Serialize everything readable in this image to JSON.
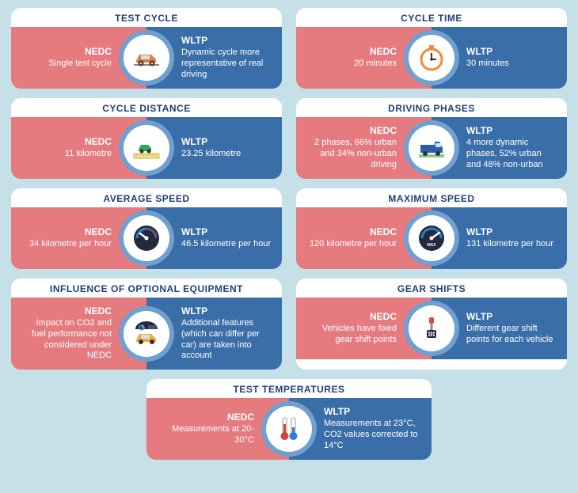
{
  "colors": {
    "background": "#c5e0e6",
    "nedc_bg": "#e57b7f",
    "wltp_bg": "#3a6ea8",
    "title_color": "#1f3f77",
    "icon_ring": "#6fa0cf",
    "icon_inner_bg": "#ffffff",
    "car_orange": "#e77b3a",
    "car_green": "#2aa85a",
    "car_blue": "#2b5ea8",
    "car_yellow": "#f2a93b",
    "gauge_dark": "#232a3c",
    "gauge_blue": "#2e7ad1",
    "stopwatch_orange": "#f08a3a",
    "gear_red": "#d34b4b",
    "thermo_red": "#d9423a",
    "thermo_blue": "#2e7ad1"
  },
  "labels": {
    "nedc": "NEDC",
    "wltp": "WLTP"
  },
  "cards": [
    {
      "id": "test-cycle",
      "title": "TEST CYCLE",
      "icon": "car-orange",
      "nedc": "Single test cycle",
      "wltp": "Dynamic cycle more representative of real driving"
    },
    {
      "id": "cycle-time",
      "title": "CYCLE TIME",
      "icon": "stopwatch",
      "nedc": "20 minutes",
      "wltp": "30 minutes"
    },
    {
      "id": "cycle-distance",
      "title": "CYCLE DISTANCE",
      "icon": "car-green-ruler",
      "nedc": "11 kilometre",
      "wltp": "23.25 kilometre"
    },
    {
      "id": "driving-phases",
      "title": "DRIVING PHASES",
      "icon": "van-blue",
      "nedc": "2 phases, 66% urban and 34% non-urban driving",
      "wltp": "4 more dynamic phases, 52% urban and 48% non-urban"
    },
    {
      "id": "average-speed",
      "title": "AVERAGE SPEED",
      "icon": "gauge-low",
      "nedc": "34 kilometre per hour",
      "wltp": "46.5 kilometre per hour"
    },
    {
      "id": "maximum-speed",
      "title": "MAXIMUM SPEED",
      "icon": "gauge-max",
      "nedc": "120 kilometre per hour",
      "wltp": "131 kilometre per hour"
    },
    {
      "id": "optional-equipment",
      "title": "INFLUENCE OF OPTIONAL EQUIPMENT",
      "icon": "car-yellow-dash",
      "nedc": "Impact on CO2 and fuel performance not considered under NEDC",
      "wltp": "Additional features (which can differ per car) are taken into account"
    },
    {
      "id": "gear-shifts",
      "title": "GEAR SHIFTS",
      "icon": "gear",
      "nedc": "Vehicles have fixed gear shift points",
      "wltp": "Different gear shift points for each vehicle"
    },
    {
      "id": "test-temperatures",
      "title": "TEST TEMPERATURES",
      "icon": "thermometers",
      "full": true,
      "nedc": "Measurements at 20-30°C",
      "wltp": "Measurements at 23°C, CO2 values corrected to 14°C"
    }
  ]
}
